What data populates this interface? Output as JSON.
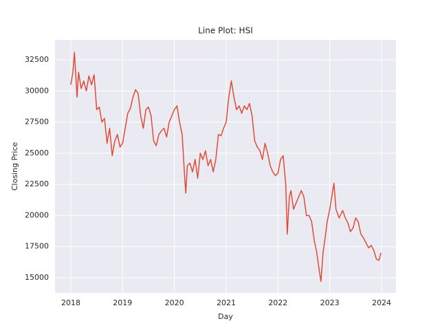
{
  "chart_data": {
    "type": "line",
    "title": "Line Plot: HSI",
    "x_label": "Day",
    "y_label": "Closing Price",
    "x": [
      2018.0,
      2018.04,
      2018.07,
      2018.1,
      2018.12,
      2018.15,
      2018.2,
      2018.25,
      2018.3,
      2018.35,
      2018.4,
      2018.45,
      2018.5,
      2018.55,
      2018.6,
      2018.65,
      2018.7,
      2018.75,
      2018.8,
      2018.85,
      2018.9,
      2018.95,
      2019.0,
      2019.05,
      2019.1,
      2019.15,
      2019.2,
      2019.25,
      2019.3,
      2019.35,
      2019.4,
      2019.45,
      2019.5,
      2019.55,
      2019.6,
      2019.65,
      2019.7,
      2019.75,
      2019.8,
      2019.85,
      2019.9,
      2019.95,
      2020.0,
      2020.05,
      2020.1,
      2020.15,
      2020.2,
      2020.22,
      2020.25,
      2020.3,
      2020.35,
      2020.4,
      2020.45,
      2020.5,
      2020.55,
      2020.6,
      2020.65,
      2020.7,
      2020.75,
      2020.8,
      2020.85,
      2020.9,
      2020.95,
      2021.0,
      2021.05,
      2021.1,
      2021.15,
      2021.2,
      2021.25,
      2021.3,
      2021.35,
      2021.4,
      2021.45,
      2021.5,
      2021.55,
      2021.6,
      2021.65,
      2021.7,
      2021.75,
      2021.8,
      2021.85,
      2021.9,
      2021.95,
      2022.0,
      2022.05,
      2022.1,
      2022.15,
      2022.18,
      2022.22,
      2022.25,
      2022.3,
      2022.35,
      2022.4,
      2022.45,
      2022.5,
      2022.55,
      2022.6,
      2022.65,
      2022.7,
      2022.75,
      2022.8,
      2022.83,
      2022.87,
      2022.92,
      2022.95,
      2023.0,
      2023.05,
      2023.08,
      2023.12,
      2023.18,
      2023.25,
      2023.3,
      2023.35,
      2023.4,
      2023.45,
      2023.5,
      2023.55,
      2023.6,
      2023.65,
      2023.7,
      2023.75,
      2023.8,
      2023.85,
      2023.9,
      2023.95,
      2023.99
    ],
    "series": [
      {
        "name": "HSI",
        "color": "#e24a33",
        "values": [
          30500,
          31500,
          33100,
          31000,
          29500,
          31500,
          30200,
          30800,
          30000,
          31200,
          30500,
          31300,
          28500,
          28700,
          27500,
          27800,
          25800,
          27000,
          24800,
          26000,
          26500,
          25500,
          25800,
          27000,
          28200,
          28600,
          29500,
          30100,
          29800,
          28000,
          27000,
          28500,
          28700,
          28000,
          26000,
          25600,
          26500,
          26800,
          27000,
          26300,
          27500,
          28000,
          28500,
          28800,
          27500,
          26500,
          23000,
          21800,
          24000,
          24200,
          23500,
          24500,
          23000,
          25000,
          24500,
          25200,
          24000,
          24500,
          23500,
          24500,
          26500,
          26400,
          27000,
          27500,
          29500,
          30800,
          29500,
          28500,
          28800,
          28200,
          28800,
          28500,
          29000,
          28000,
          26000,
          25500,
          25200,
          24500,
          25800,
          25000,
          24000,
          23500,
          23200,
          23400,
          24500,
          24800,
          22500,
          18500,
          21500,
          22000,
          20500,
          21000,
          21500,
          22000,
          21500,
          20000,
          20000,
          19500,
          18000,
          17000,
          15500,
          14700,
          17000,
          18500,
          19500,
          20500,
          21800,
          22600,
          20500,
          19800,
          20400,
          19800,
          19400,
          18700,
          19000,
          19800,
          19500,
          18500,
          18200,
          17800,
          17400,
          17600,
          17200,
          16500,
          16400,
          17000
        ]
      }
    ],
    "xlim": [
      2017.695,
      2024.279
    ],
    "ylim": [
      13786,
      34101
    ],
    "xticks": [
      2018,
      2019,
      2020,
      2021,
      2022,
      2023,
      2024
    ],
    "yticks": [
      15000,
      17500,
      20000,
      22500,
      25000,
      27500,
      30000,
      32500
    ],
    "grid": true
  }
}
